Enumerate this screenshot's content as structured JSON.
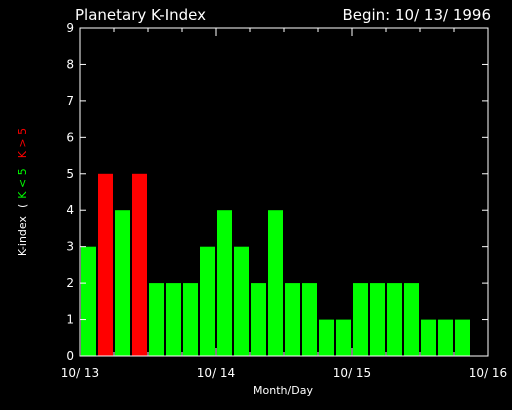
{
  "chart_data": {
    "type": "bar",
    "title": "Planetary K-Index",
    "subtitle": "Begin: 10/ 13/ 1996",
    "xlabel": "Month/Day",
    "ylabel": {
      "prefix": "K-index",
      "open_paren": "(",
      "green_part": "K < 5",
      "red_part": "K > 5"
    },
    "ylim": [
      0,
      9
    ],
    "yticks": [
      "0",
      "1",
      "2",
      "3",
      "4",
      "5",
      "6",
      "7",
      "8",
      "9"
    ],
    "xlim_days": [
      0,
      3
    ],
    "xticks": [
      {
        "day": 0,
        "label": "10/ 13"
      },
      {
        "day": 1,
        "label": "10/ 14"
      },
      {
        "day": 2,
        "label": "10/ 15"
      },
      {
        "day": 3,
        "label": "10/ 16"
      }
    ],
    "bars_per_day": 8,
    "values": [
      3,
      5,
      4,
      5,
      2,
      2,
      2,
      3,
      4,
      3,
      2,
      4,
      2,
      2,
      1,
      1,
      2,
      2,
      2,
      2,
      1,
      1,
      1,
      0
    ],
    "threshold": 5,
    "colors": {
      "background": "#000000",
      "axis": "#ffffff",
      "low": "#00ff00",
      "high": "#ff0000"
    }
  }
}
